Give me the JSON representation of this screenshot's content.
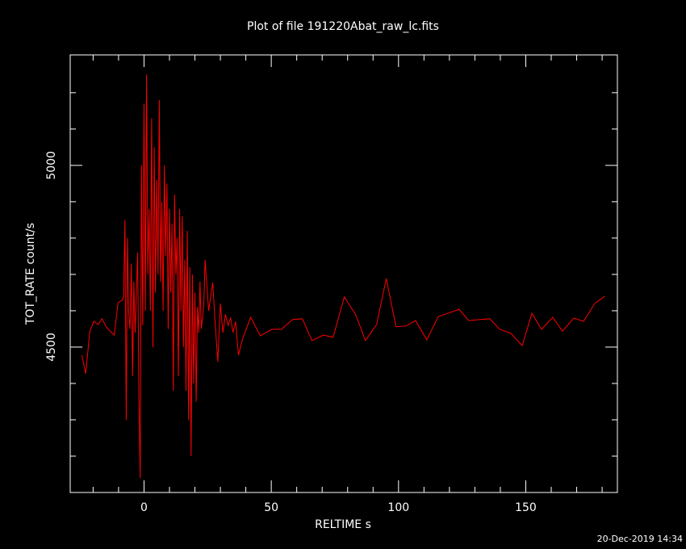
{
  "chart_data": {
    "type": "line",
    "title": "Plot of file 191220Abat_raw_lc.fits",
    "xlabel": "RELTIME  s",
    "ylabel": "TOT_RATE  count/s",
    "footer": "20-Dec-2019 14:34",
    "xlim": [
      -29,
      186
    ],
    "ylim": [
      4100,
      5304
    ],
    "xticks": [
      0,
      50,
      100,
      150
    ],
    "yticks": [
      4500,
      5000
    ],
    "xticks_minor": [
      -20,
      -10,
      10,
      20,
      30,
      40,
      60,
      70,
      80,
      90,
      110,
      120,
      130,
      140,
      160,
      170,
      180
    ],
    "yticks_minor": [
      4200,
      4300,
      4400,
      4600,
      4700,
      4800,
      4900,
      5100,
      5200
    ],
    "color": "#ff0000",
    "x": [
      -24.4,
      -22.9,
      -21.3,
      -19.7,
      -18.1,
      -16.5,
      -14.9,
      -13.3,
      -11.7,
      -10.2,
      -8.6,
      -8.0,
      -7.5,
      -7.0,
      -6.5,
      -6.0,
      -5.5,
      -5.0,
      -4.5,
      -4.0,
      -3.5,
      -3.0,
      -2.5,
      -2.0,
      -1.5,
      -1.0,
      -0.5,
      0.0,
      0.5,
      1.0,
      1.5,
      2.0,
      2.5,
      3.0,
      3.5,
      4.0,
      4.5,
      5.0,
      5.5,
      6.0,
      6.5,
      7.0,
      7.5,
      8.0,
      8.5,
      9.0,
      9.5,
      10.0,
      10.5,
      11.0,
      11.5,
      12.0,
      12.5,
      13.0,
      13.5,
      14.0,
      14.5,
      15.0,
      15.5,
      16.0,
      16.5,
      17.0,
      17.5,
      18.0,
      18.5,
      19.0,
      19.5,
      20.0,
      20.5,
      21.0,
      21.5,
      22.0,
      22.5,
      23.0,
      23.5,
      24.0,
      25.4,
      27.0,
      28.0,
      29.0,
      30.0,
      31.0,
      32.0,
      33.0,
      34.0,
      35.0,
      36.0,
      37.1,
      38.7,
      41.9,
      45.7,
      50.2,
      54.0,
      58.4,
      62.2,
      66.0,
      70.5,
      74.3,
      78.7,
      83.2,
      87.0,
      91.4,
      95.2,
      99.0,
      102.9,
      106.7,
      111.1,
      115.6,
      119.4,
      123.8,
      127.6,
      132.1,
      135.9,
      139.7,
      144.1,
      148.6,
      152.4,
      156.2,
      160.6,
      164.4,
      168.9,
      172.7,
      177.1,
      181.0
    ],
    "values": [
      4478,
      4427,
      4544,
      4571,
      4562,
      4578,
      4556,
      4544,
      4533,
      4622,
      4629,
      4640,
      4850,
      4300,
      4800,
      4590,
      4550,
      4730,
      4420,
      4680,
      4540,
      4650,
      4760,
      4360,
      4140,
      5000,
      4560,
      5170,
      4600,
      5250,
      4700,
      4880,
      4600,
      5130,
      4500,
      5050,
      4650,
      4960,
      4700,
      5180,
      4680,
      4900,
      4600,
      5000,
      4750,
      4950,
      4550,
      4880,
      4650,
      4840,
      4380,
      4920,
      4700,
      4800,
      4420,
      4880,
      4600,
      4860,
      4500,
      4740,
      4380,
      4820,
      4300,
      4720,
      4200,
      4700,
      4400,
      4650,
      4350,
      4610,
      4540,
      4680,
      4550,
      4580,
      4620,
      4740,
      4600,
      4678,
      4560,
      4460,
      4620,
      4540,
      4590,
      4560,
      4580,
      4540,
      4570,
      4478,
      4522,
      4582,
      4531,
      4549,
      4549,
      4576,
      4578,
      4518,
      4533,
      4527,
      4638,
      4589,
      4518,
      4562,
      4689,
      4556,
      4558,
      4573,
      4520,
      4584,
      4593,
      4604,
      4573,
      4576,
      4578,
      4549,
      4538,
      4504,
      4593,
      4549,
      4582,
      4544,
      4580,
      4571,
      4620,
      4640
    ]
  }
}
